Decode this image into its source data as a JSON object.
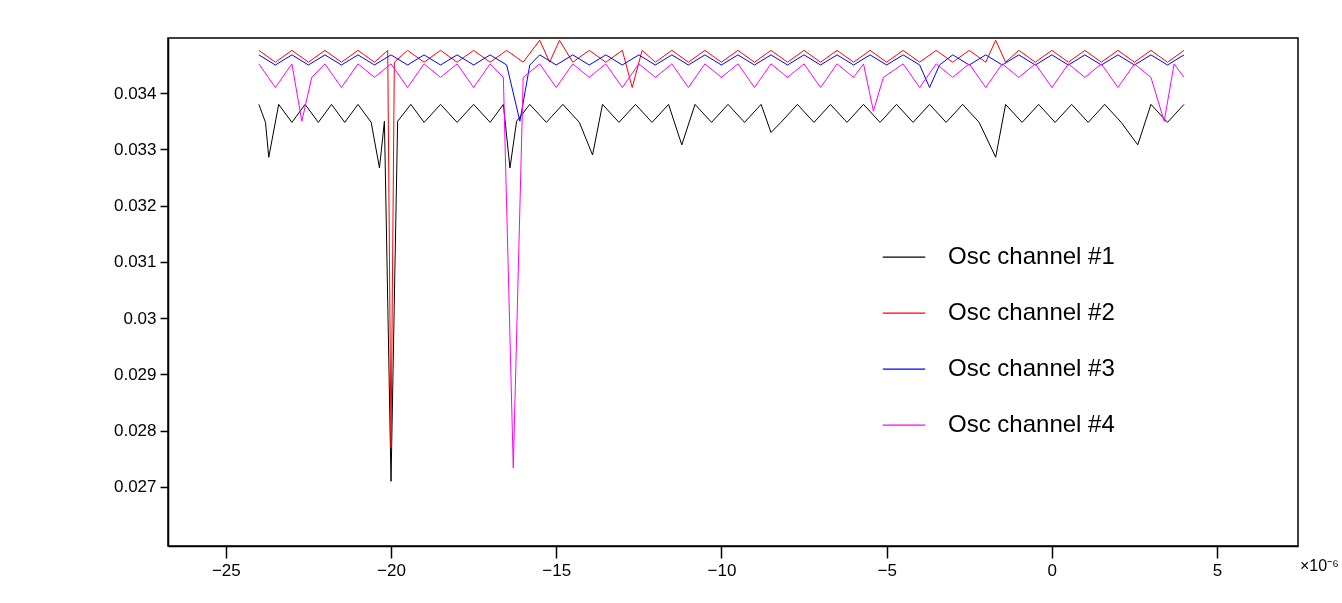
{
  "chart_data": {
    "type": "line",
    "xlim": [
      -26.75,
      7.45
    ],
    "xticks": [
      -25,
      -20,
      -15,
      -10,
      -5,
      0,
      5
    ],
    "ylim": [
      0.02595,
      0.03498
    ],
    "yticks": [
      0.027,
      0.028,
      0.029,
      0.03,
      0.031,
      0.032,
      0.033,
      0.034
    ],
    "grid": false,
    "legend": "right",
    "marker": "none",
    "line_style": "solid",
    "annotations": [
      "×10⁻⁶"
    ],
    "series": [
      {
        "name": "Osc channel #1",
        "color": "#000000",
        "x": [
          -24,
          -23.8,
          -23.7,
          -23.4,
          -23,
          -22.6,
          -22.2,
          -21.8,
          -21.4,
          -21,
          -20.6,
          -20.35,
          -20.2,
          -20,
          -19.8,
          -19.4,
          -19,
          -18.5,
          -18,
          -17.5,
          -17,
          -16.6,
          -16.4,
          -16.2,
          -15.8,
          -15.3,
          -14.8,
          -14.3,
          -13.9,
          -13.6,
          -13.1,
          -12.6,
          -12.1,
          -11.6,
          -11.2,
          -10.8,
          -10.3,
          -9.8,
          -9.3,
          -8.8,
          -8.5,
          -8.2,
          -7.7,
          -7.2,
          -6.7,
          -6.2,
          -5.7,
          -5.2,
          -4.7,
          -4.2,
          -3.7,
          -3.2,
          -2.7,
          -2.2,
          -1.7,
          -1.4,
          -0.9,
          -0.4,
          0.1,
          0.6,
          1.1,
          1.6,
          2.1,
          2.6,
          3,
          3.5,
          4
        ],
        "values": [
          0.0338,
          0.03348,
          0.03286,
          0.0338,
          0.03348,
          0.0338,
          0.03348,
          0.0338,
          0.03348,
          0.0338,
          0.03348,
          0.03267,
          0.0335,
          0.0271,
          0.0335,
          0.0338,
          0.03348,
          0.0338,
          0.03348,
          0.0338,
          0.03348,
          0.0338,
          0.03267,
          0.0335,
          0.0338,
          0.03348,
          0.0338,
          0.03348,
          0.0329,
          0.0338,
          0.03348,
          0.0338,
          0.03348,
          0.0338,
          0.03308,
          0.0338,
          0.03348,
          0.0338,
          0.03348,
          0.0338,
          0.0333,
          0.03348,
          0.0338,
          0.03348,
          0.0338,
          0.03348,
          0.0338,
          0.03348,
          0.0338,
          0.03348,
          0.0338,
          0.03348,
          0.0338,
          0.03348,
          0.03286,
          0.0338,
          0.03348,
          0.0338,
          0.03348,
          0.0338,
          0.03348,
          0.0338,
          0.03348,
          0.03308,
          0.0338,
          0.03348,
          0.0338
        ]
      },
      {
        "name": "Osc channel #2",
        "color": "#ff0000",
        "x": [
          -24,
          -23.5,
          -23,
          -22.5,
          -22,
          -21.5,
          -21,
          -20.5,
          -20.1,
          -20,
          -19.9,
          -19.5,
          -19,
          -18.5,
          -18,
          -17.5,
          -17,
          -16.5,
          -16,
          -15.5,
          -15.2,
          -14.9,
          -14.5,
          -14,
          -13.5,
          -13,
          -12.7,
          -12.4,
          -12,
          -11.5,
          -11,
          -10.5,
          -10,
          -9.5,
          -9,
          -8.5,
          -8,
          -7.5,
          -7,
          -6.5,
          -6,
          -5.5,
          -5,
          -4.5,
          -4,
          -3.5,
          -3,
          -2.5,
          -2,
          -1.7,
          -1.4,
          -1,
          -0.5,
          0,
          0.5,
          1,
          1.5,
          2,
          2.5,
          3,
          3.5,
          4
        ],
        "values": [
          0.03476,
          0.03455,
          0.03476,
          0.03455,
          0.03476,
          0.03455,
          0.03476,
          0.03455,
          0.03476,
          0.0277,
          0.03455,
          0.03476,
          0.03455,
          0.03476,
          0.03455,
          0.03476,
          0.03455,
          0.03476,
          0.03455,
          0.03494,
          0.03455,
          0.03494,
          0.03455,
          0.03476,
          0.03455,
          0.03476,
          0.0341,
          0.03476,
          0.03455,
          0.03476,
          0.03455,
          0.03476,
          0.03455,
          0.03476,
          0.03455,
          0.03476,
          0.03455,
          0.03476,
          0.03455,
          0.03476,
          0.03455,
          0.03476,
          0.03455,
          0.03476,
          0.03455,
          0.03476,
          0.03455,
          0.03476,
          0.03455,
          0.03494,
          0.03455,
          0.03476,
          0.03455,
          0.03476,
          0.03455,
          0.03476,
          0.03455,
          0.03476,
          0.03455,
          0.03476,
          0.03455,
          0.03476
        ]
      },
      {
        "name": "Osc channel #3",
        "color": "#0000ff",
        "x": [
          -24,
          -23.5,
          -23,
          -22.5,
          -22,
          -21.5,
          -21,
          -20.5,
          -20,
          -19.5,
          -19,
          -18.5,
          -18,
          -17.5,
          -17,
          -16.5,
          -16.1,
          -15.8,
          -15.5,
          -15,
          -14.5,
          -14,
          -13.5,
          -13,
          -12.5,
          -12,
          -11.5,
          -11,
          -10.5,
          -10,
          -9.5,
          -9,
          -8.5,
          -8,
          -7.5,
          -7,
          -6.5,
          -6,
          -5.5,
          -5,
          -4.5,
          -4,
          -3.7,
          -3.4,
          -3,
          -2.5,
          -2,
          -1.5,
          -1,
          -0.5,
          0,
          0.5,
          1,
          1.5,
          2,
          2.5,
          3,
          3.5,
          4
        ],
        "values": [
          0.03468,
          0.0345,
          0.03468,
          0.0345,
          0.03468,
          0.0345,
          0.03468,
          0.0345,
          0.03468,
          0.0345,
          0.03468,
          0.0345,
          0.03468,
          0.0345,
          0.03468,
          0.0345,
          0.0335,
          0.0345,
          0.03468,
          0.0345,
          0.03468,
          0.0345,
          0.03468,
          0.0345,
          0.03468,
          0.0345,
          0.03468,
          0.0345,
          0.03468,
          0.0345,
          0.03468,
          0.0345,
          0.03468,
          0.0345,
          0.03468,
          0.0345,
          0.03468,
          0.0345,
          0.03468,
          0.0345,
          0.03468,
          0.0345,
          0.0341,
          0.0345,
          0.03468,
          0.0345,
          0.03468,
          0.0345,
          0.03468,
          0.0345,
          0.03468,
          0.0345,
          0.03468,
          0.0345,
          0.03468,
          0.0345,
          0.03468,
          0.0345,
          0.03468
        ]
      },
      {
        "name": "Osc channel #4",
        "color": "#ff00ff",
        "x": [
          -24,
          -23.5,
          -23,
          -22.7,
          -22.4,
          -22,
          -21.5,
          -21,
          -20.5,
          -20,
          -19.5,
          -19,
          -18.5,
          -18,
          -17.5,
          -17,
          -16.6,
          -16.3,
          -16,
          -15.5,
          -15,
          -14.5,
          -14,
          -13.5,
          -13,
          -12.5,
          -12,
          -11.5,
          -11,
          -10.5,
          -10,
          -9.5,
          -9,
          -8.5,
          -8,
          -7.5,
          -7,
          -6.5,
          -6,
          -5.7,
          -5.4,
          -5.1,
          -4.5,
          -4,
          -3.5,
          -3,
          -2.5,
          -2,
          -1.5,
          -1,
          -0.5,
          0,
          0.5,
          1,
          1.5,
          2,
          2.5,
          3,
          3.4,
          3.7,
          4
        ],
        "values": [
          0.03452,
          0.0341,
          0.03452,
          0.0335,
          0.03428,
          0.03452,
          0.0341,
          0.03452,
          0.03428,
          0.03452,
          0.0341,
          0.03452,
          0.03428,
          0.03452,
          0.0341,
          0.03452,
          0.03428,
          0.02734,
          0.03428,
          0.03452,
          0.0341,
          0.03452,
          0.03428,
          0.03452,
          0.0341,
          0.03452,
          0.03428,
          0.03452,
          0.0341,
          0.03452,
          0.03428,
          0.03452,
          0.0341,
          0.03452,
          0.03428,
          0.03452,
          0.0341,
          0.03452,
          0.03428,
          0.03452,
          0.03368,
          0.03428,
          0.03452,
          0.0341,
          0.03452,
          0.03428,
          0.03452,
          0.0341,
          0.03452,
          0.03428,
          0.03452,
          0.0341,
          0.03452,
          0.03428,
          0.03452,
          0.0341,
          0.03452,
          0.03428,
          0.0335,
          0.03452,
          0.03428
        ]
      }
    ]
  }
}
